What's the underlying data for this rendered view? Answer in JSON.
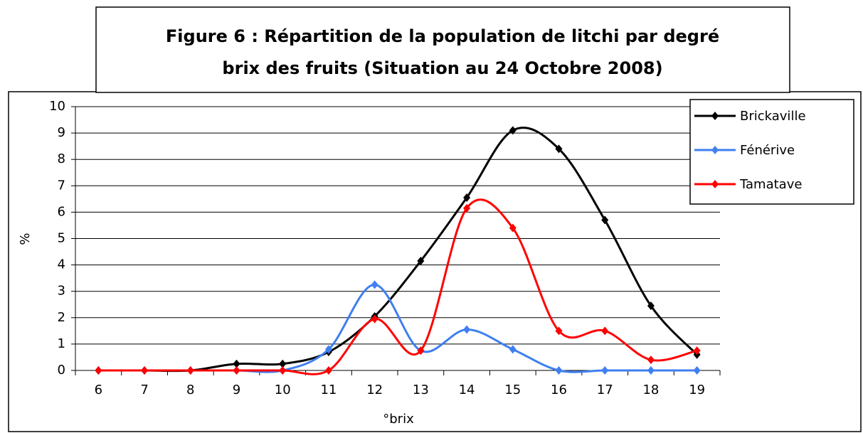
{
  "chart_data": {
    "type": "line",
    "title": "Figure 6 : Répartition de  la population de litchi par degré",
    "subtitle": "brix des fruits (Situation au 24 Octobre 2008)",
    "x_label": "°brix",
    "y_label": "%",
    "categories": [
      "6",
      "7",
      "8",
      "9",
      "10",
      "11",
      "12",
      "13",
      "14",
      "15",
      "16",
      "17",
      "18",
      "19"
    ],
    "series": [
      {
        "name": "Brickaville",
        "color": "#000000",
        "values": [
          0,
          0,
          0,
          0.25,
          0.25,
          0.7,
          2.05,
          4.15,
          6.55,
          9.1,
          8.4,
          5.7,
          2.45,
          0.6
        ]
      },
      {
        "name": "Fénérive",
        "color": "#3f7ff0",
        "values": [
          0,
          0,
          0,
          0,
          0,
          0.8,
          3.25,
          0.75,
          1.55,
          0.8,
          0,
          0,
          0,
          0
        ]
      },
      {
        "name": "Tamatave",
        "color": "#ff0000",
        "values": [
          0,
          0,
          0,
          0,
          0,
          0,
          1.95,
          0.75,
          6.15,
          5.4,
          1.5,
          1.5,
          0.4,
          0.75
        ]
      }
    ],
    "ylim": [
      0,
      10
    ],
    "yticks": [
      0,
      1,
      2,
      3,
      4,
      5,
      6,
      7,
      8,
      9,
      10
    ],
    "grid": true,
    "smooth": true,
    "legend": "top-right"
  }
}
